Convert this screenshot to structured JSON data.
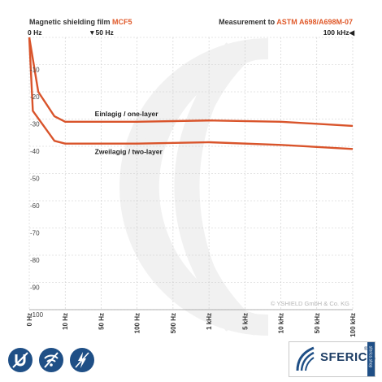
{
  "header": {
    "left_prefix": "Magnetic shielding film",
    "left_accent": "MCF5",
    "right_prefix": "Measurement to",
    "right_accent": "ASTM A698/A698M-07"
  },
  "markers": [
    "0 Hz",
    "▼50 Hz",
    "100 kHz◀"
  ],
  "copyright": "© YSHIELD GmbH & Co. KG",
  "brand": {
    "name": "SFERICS",
    "tab_text": "sferics.shop",
    "registered": "®"
  },
  "colors": {
    "curve": "#d9542b",
    "grid": "#cccccc",
    "accent": "#e05a2b",
    "icon_blue": "#1f4f86"
  },
  "icons": [
    "magnet-shield-icon",
    "no-wifi-icon",
    "lightning-shield-icon"
  ],
  "chart_data": {
    "type": "line",
    "title": "",
    "xlabel": "",
    "ylabel": "",
    "x_scale": "log-like (frequency)",
    "x_ticks": [
      "0 Hz",
      "10 Hz",
      "50 Hz",
      "100 Hz",
      "500 Hz",
      "1 kHz",
      "5 kHz",
      "10 kHz",
      "50 kHz",
      "100 kHz"
    ],
    "y_ticks": [
      "-10",
      "-20",
      "-30",
      "-40",
      "-50",
      "-60",
      "-70",
      "-80",
      "-90",
      "-100"
    ],
    "ylim": [
      -100,
      0
    ],
    "grid": true,
    "series": [
      {
        "name": "Einlagig / one-layer",
        "points": [
          {
            "x": "0 Hz",
            "y": 0
          },
          {
            "x": "2 Hz",
            "y": -20
          },
          {
            "x": "5 Hz",
            "y": -29
          },
          {
            "x": "10 Hz",
            "y": -31
          },
          {
            "x": "100 Hz",
            "y": -31
          },
          {
            "x": "1 kHz",
            "y": -30.5
          },
          {
            "x": "10 kHz",
            "y": -31
          },
          {
            "x": "100 kHz",
            "y": -32.5
          }
        ]
      },
      {
        "name": "Zweilagig / two-layer",
        "points": [
          {
            "x": "0 Hz",
            "y": 0
          },
          {
            "x": "1 Hz",
            "y": -27
          },
          {
            "x": "5 Hz",
            "y": -38
          },
          {
            "x": "10 Hz",
            "y": -39
          },
          {
            "x": "100 Hz",
            "y": -39
          },
          {
            "x": "1 kHz",
            "y": -38.5
          },
          {
            "x": "10 kHz",
            "y": -39.5
          },
          {
            "x": "100 kHz",
            "y": -41
          }
        ]
      }
    ]
  }
}
